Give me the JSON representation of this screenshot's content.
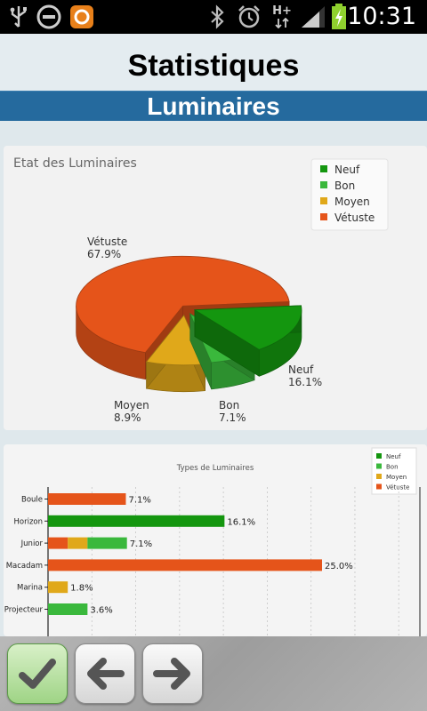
{
  "status_bar": {
    "time": "10:31",
    "network_label": "H+"
  },
  "header": {
    "title": "Statistiques",
    "section": "Luminaires"
  },
  "colors": {
    "neuf": "#14960f",
    "bon": "#3ab83c",
    "moyen": "#e0a81a",
    "vetuste": "#e5541a",
    "band": "#256a9e"
  },
  "chart_data": [
    {
      "type": "pie",
      "title": "Etat des Luminaires",
      "legend": [
        "Neuf",
        "Bon",
        "Moyen",
        "Vétuste"
      ],
      "legend_position": "top-right",
      "slices": [
        {
          "name": "Neuf",
          "value": 16.1,
          "label": "16.1%"
        },
        {
          "name": "Bon",
          "value": 7.1,
          "label": "7.1%"
        },
        {
          "name": "Moyen",
          "value": 8.9,
          "label": "8.9%"
        },
        {
          "name": "Vétuste",
          "value": 67.9,
          "label": "67.9%"
        }
      ]
    },
    {
      "type": "bar",
      "orientation": "horizontal",
      "stacked": true,
      "title": "Types de Luminaires",
      "legend": [
        "Neuf",
        "Bon",
        "Moyen",
        "Vétuste"
      ],
      "legend_position": "top-right",
      "grid": true,
      "categories": [
        "Boule",
        "Horizon",
        "Junior",
        "Macadam",
        "Marina",
        "Projecteur"
      ],
      "series": [
        {
          "name": "Neuf",
          "values": [
            0,
            16.1,
            0,
            0,
            0,
            0
          ]
        },
        {
          "name": "Bon",
          "values": [
            0,
            0,
            3.6,
            0,
            0,
            3.6
          ]
        },
        {
          "name": "Moyen",
          "values": [
            0,
            0,
            1.8,
            0,
            1.8,
            0
          ]
        },
        {
          "name": "Vétuste",
          "values": [
            7.1,
            0,
            1.8,
            25.0,
            0,
            0
          ]
        }
      ],
      "totals": [
        "7.1%",
        "16.1%",
        "7.1%",
        "25.0%",
        "1.8%",
        "3.6%"
      ],
      "xlim": [
        0,
        32
      ]
    }
  ],
  "toolbar": {
    "buttons": [
      "confirm",
      "back",
      "forward"
    ]
  }
}
